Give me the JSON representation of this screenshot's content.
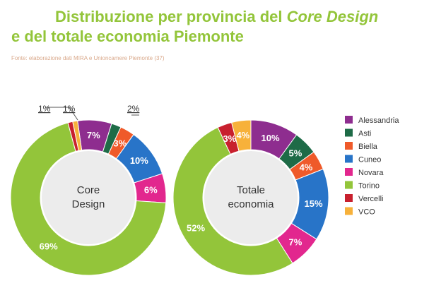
{
  "title": {
    "line1_prefix": "Distribuzione per provincia del ",
    "line1_emphasis": "Core Design",
    "line2": "e del totale economia Piemonte"
  },
  "source": "Fonte: elaborazione dati MIRA e Unioncamere Piemonte (37)",
  "chart_data": {
    "type": "pie",
    "variant": "donut",
    "legend_placement": "right",
    "categories": [
      "Alessandria",
      "Asti",
      "Biella",
      "Cuneo",
      "Novara",
      "Torino",
      "Vercelli",
      "VCO"
    ],
    "colors": [
      "#8e2d8f",
      "#1e6b47",
      "#ef5a2a",
      "#2874c8",
      "#e2278e",
      "#93c53a",
      "#c8202e",
      "#f7b13a"
    ],
    "series": [
      {
        "center_label": [
          "Core",
          "Design"
        ],
        "values": [
          7,
          2,
          3,
          10,
          6,
          69,
          1,
          1
        ],
        "labels": [
          "7%",
          "2%",
          "3%",
          "10%",
          "6%",
          "69%",
          "1%",
          "1%"
        ]
      },
      {
        "center_label": [
          "Totale",
          "economia"
        ],
        "values": [
          10,
          5,
          4,
          15,
          7,
          52,
          3,
          4
        ],
        "labels": [
          "10%",
          "5%",
          "4%",
          "15%",
          "7%",
          "52%",
          "3%",
          "4%"
        ]
      }
    ]
  }
}
